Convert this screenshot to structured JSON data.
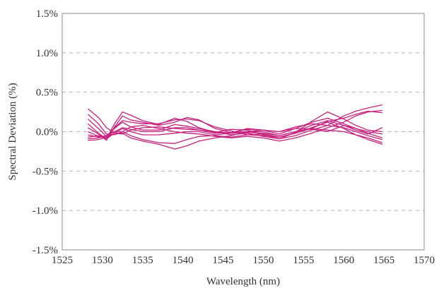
{
  "chart_data": {
    "type": "line",
    "title": "",
    "xlabel": "Wavelength (nm)",
    "ylabel": "Spectral Deviation (%)",
    "xlim": [
      1525,
      1570
    ],
    "ylim": [
      -1.5,
      1.5
    ],
    "x_ticks": [
      "1525",
      "1530",
      "1535",
      "1540",
      "1545",
      "1550",
      "1555",
      "1560",
      "1565",
      "1570"
    ],
    "y_ticks": [
      "1.5%",
      "1.0%",
      "0.5%",
      "0.0%",
      "-0.5%",
      "-1.0%",
      "-1.5%"
    ],
    "grid": "horizontal dashed",
    "legend": "none",
    "line_color": "#c8207e",
    "x": [
      1528.2,
      1529.5,
      1530.5,
      1531.5,
      1532.5,
      1533.5,
      1535,
      1537,
      1539,
      1540.5,
      1542,
      1544,
      1546,
      1548,
      1550,
      1552,
      1554,
      1556,
      1558,
      1560,
      1561.5,
      1563,
      1564.8
    ],
    "series": [
      {
        "values": [
          0.29,
          0.18,
          0.05,
          -0.02,
          -0.03,
          0.02,
          0.05,
          0.06,
          0.04,
          0.03,
          0.02,
          0.0,
          -0.04,
          -0.02,
          -0.06,
          -0.09,
          -0.05,
          0.02,
          0.08,
          0.2,
          0.26,
          0.3,
          0.34
        ]
      },
      {
        "values": [
          0.22,
          0.1,
          -0.03,
          -0.04,
          0.0,
          0.06,
          0.08,
          0.04,
          0.0,
          -0.02,
          -0.03,
          -0.06,
          -0.08,
          -0.06,
          -0.08,
          -0.12,
          -0.08,
          -0.02,
          0.05,
          0.12,
          0.2,
          0.25,
          0.27
        ]
      },
      {
        "values": [
          0.16,
          0.04,
          -0.06,
          0.05,
          0.14,
          0.12,
          0.1,
          0.1,
          0.15,
          0.16,
          0.14,
          0.06,
          0.01,
          -0.04,
          -0.05,
          -0.07,
          -0.02,
          0.04,
          0.13,
          0.17,
          0.22,
          0.26,
          0.24
        ]
      },
      {
        "values": [
          0.1,
          -0.02,
          -0.09,
          0.1,
          0.25,
          0.21,
          0.14,
          0.09,
          0.17,
          0.13,
          0.05,
          -0.01,
          0.03,
          0.02,
          -0.04,
          -0.09,
          -0.01,
          0.13,
          0.25,
          0.16,
          0.08,
          0.02,
          0.0
        ]
      },
      {
        "values": [
          0.05,
          -0.03,
          -0.11,
          0.06,
          0.2,
          0.15,
          0.12,
          0.08,
          0.12,
          0.18,
          0.15,
          0.04,
          -0.01,
          0.0,
          0.0,
          -0.05,
          0.0,
          0.08,
          0.14,
          0.08,
          0.02,
          -0.03,
          0.05
        ]
      },
      {
        "values": [
          0.0,
          -0.06,
          -0.07,
          0.04,
          0.12,
          0.06,
          0.02,
          0.02,
          0.09,
          0.07,
          0.04,
          0.0,
          -0.02,
          0.04,
          0.02,
          -0.03,
          0.04,
          0.12,
          0.17,
          0.1,
          0.04,
          0.0,
          -0.03
        ]
      },
      {
        "values": [
          -0.04,
          -0.07,
          -0.05,
          0.0,
          0.05,
          0.03,
          0.0,
          0.0,
          0.05,
          0.05,
          0.02,
          -0.02,
          -0.01,
          0.03,
          0.02,
          0.0,
          0.06,
          0.1,
          0.08,
          0.05,
          0.0,
          -0.05,
          -0.1
        ]
      },
      {
        "values": [
          -0.07,
          -0.05,
          -0.09,
          -0.02,
          0.04,
          0.0,
          -0.04,
          -0.04,
          -0.02,
          0.0,
          0.0,
          -0.04,
          -0.02,
          -0.01,
          -0.02,
          -0.05,
          0.0,
          0.04,
          0.02,
          0.0,
          -0.04,
          -0.08,
          -0.14
        ]
      },
      {
        "values": [
          -0.09,
          -0.08,
          -0.05,
          0.0,
          0.0,
          -0.05,
          -0.1,
          -0.14,
          -0.15,
          -0.1,
          -0.06,
          -0.05,
          -0.07,
          -0.04,
          -0.03,
          -0.07,
          -0.02,
          0.05,
          0.12,
          0.04,
          -0.04,
          -0.1,
          -0.16
        ]
      },
      {
        "values": [
          -0.11,
          -0.1,
          -0.07,
          -0.02,
          -0.02,
          -0.08,
          -0.12,
          -0.16,
          -0.22,
          -0.18,
          -0.12,
          -0.08,
          -0.05,
          0.0,
          0.02,
          0.0,
          0.04,
          0.03,
          0.0,
          0.08,
          0.04,
          -0.02,
          -0.08
        ]
      }
    ]
  }
}
